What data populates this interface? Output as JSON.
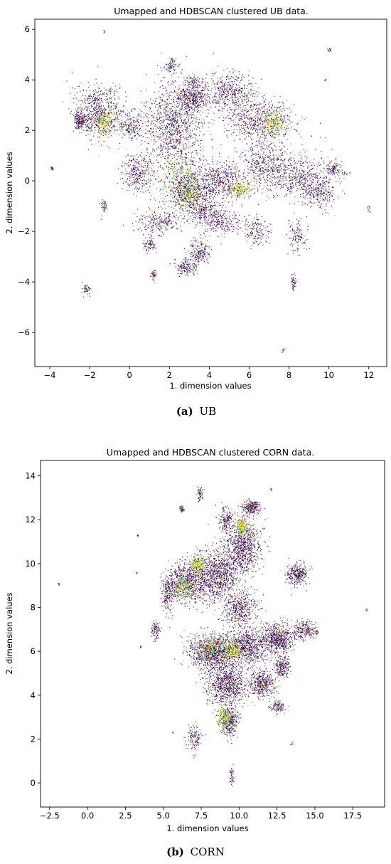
{
  "colors": {
    "noise": "#440154",
    "cluster_palette": [
      "#3b528b",
      "#21918c",
      "#5ec962",
      "#fde725"
    ],
    "frame": "#000000",
    "background": "#ffffff"
  },
  "chart_data": [
    {
      "id": "ub",
      "type": "scatter",
      "title": "Umapped and HDBSCAN clustered UB data.",
      "xlabel": "1. dimension values",
      "ylabel": "2. dimension values",
      "xlim": [
        -4.75,
        12.9
      ],
      "ylim": [
        -7.35,
        6.4
      ],
      "xticks": [
        -4,
        -2,
        0,
        2,
        4,
        6,
        8,
        10,
        12
      ],
      "xtick_labels": [
        "−4",
        "−2",
        "0",
        "2",
        "4",
        "6",
        "8",
        "10",
        "12"
      ],
      "yticks": [
        -6,
        -4,
        -2,
        0,
        2,
        4,
        6
      ],
      "ytick_labels": [
        "−6",
        "−4",
        "−2",
        "0",
        "2",
        "4",
        "6"
      ],
      "grid": false,
      "legend": "none",
      "caption_label": "(a)",
      "caption_text": "UB",
      "blobs": [
        [
          2.2,
          2.2,
          1.5,
          1.8,
          0.7
        ],
        [
          3.2,
          3.3,
          0.7,
          0.5,
          0.25
        ],
        [
          6.5,
          2.4,
          1.6,
          0.8,
          0.4
        ],
        [
          6.8,
          0.7,
          1.2,
          1.0,
          0.3
        ],
        [
          3.0,
          -0.3,
          1.4,
          1.0,
          0.5
        ],
        [
          8.5,
          0.2,
          1.5,
          0.9,
          0.3
        ],
        [
          9.5,
          -0.5,
          0.8,
          0.6,
          0.15
        ],
        [
          -1.5,
          2.8,
          1.2,
          1.0,
          0.45
        ],
        [
          -2.5,
          2.4,
          0.3,
          0.4,
          0.12
        ],
        [
          0.1,
          2.2,
          0.6,
          0.5,
          0.12
        ],
        [
          0.4,
          0.3,
          0.8,
          0.7,
          0.2
        ],
        [
          5.0,
          3.5,
          1.2,
          0.8,
          0.3
        ],
        [
          4.7,
          0.0,
          1.3,
          0.8,
          0.3
        ],
        [
          4.5,
          -1.6,
          1.0,
          0.5,
          0.15
        ],
        [
          1.5,
          -1.6,
          1.0,
          0.5,
          0.15
        ],
        [
          1.0,
          -2.5,
          0.3,
          0.3,
          0.05
        ],
        [
          3.5,
          -2.8,
          0.6,
          0.5,
          0.12
        ],
        [
          2.8,
          -3.4,
          0.6,
          0.3,
          0.1
        ],
        [
          6.3,
          -2.0,
          0.7,
          0.6,
          0.1
        ],
        [
          8.4,
          -2.2,
          0.5,
          0.6,
          0.08
        ],
        [
          2.1,
          4.6,
          0.3,
          0.3,
          0.05
        ],
        [
          10.2,
          0.5,
          0.4,
          0.3,
          0.06
        ],
        [
          8.2,
          -4.0,
          0.15,
          0.35,
          0.03
        ],
        [
          -1.3,
          -1.0,
          0.15,
          0.3,
          0.03
        ],
        [
          -2.2,
          -4.3,
          0.25,
          0.2,
          0.03
        ],
        [
          1.2,
          -3.7,
          0.15,
          0.25,
          0.03
        ],
        [
          10.8,
          0.3,
          0.2,
          0.1,
          0.01
        ],
        [
          12.0,
          -1.1,
          0.1,
          0.1,
          0.008
        ],
        [
          10.0,
          5.2,
          0.1,
          0.1,
          0.008
        ],
        [
          -1.3,
          5.9,
          0.05,
          0.05,
          0.003
        ],
        [
          -3.9,
          0.5,
          0.1,
          0.1,
          0.008
        ],
        [
          7.7,
          -6.7,
          0.08,
          0.08,
          0.005
        ],
        [
          9.8,
          4.0,
          0.05,
          0.05,
          0.003
        ],
        [
          3.2,
          3.9,
          0.5,
          0.3,
          0.05
        ],
        [
          3.7,
          -1.2,
          1.0,
          0.5,
          0.15
        ]
      ],
      "dense_blobs": [
        [
          2.4,
          0.3,
          0.8,
          1.0
        ],
        [
          3.0,
          -0.5,
          0.6,
          0.5
        ],
        [
          -1.3,
          2.3,
          0.5,
          0.5
        ],
        [
          5.5,
          -0.3,
          0.5,
          0.3
        ],
        [
          7.2,
          2.3,
          0.6,
          0.5
        ]
      ]
    },
    {
      "id": "corn",
      "type": "scatter",
      "title": "Umapped and HDBSCAN clustered CORN data.",
      "xlabel": "1. dimension values",
      "ylabel": "2. dimension values",
      "xlim": [
        -3.1,
        19.6
      ],
      "ylim": [
        -1.1,
        14.7
      ],
      "xticks": [
        -2.5,
        0.0,
        2.5,
        5.0,
        7.5,
        10.0,
        12.5,
        15.0,
        17.5
      ],
      "xtick_labels": [
        "−2.5",
        "0.0",
        "2.5",
        "5.0",
        "7.5",
        "10.0",
        "12.5",
        "15.0",
        "17.5"
      ],
      "yticks": [
        0,
        2,
        4,
        6,
        8,
        10,
        12,
        14
      ],
      "ytick_labels": [
        "0",
        "2",
        "4",
        "6",
        "8",
        "10",
        "12",
        "14"
      ],
      "grid": false,
      "legend": "none",
      "caption_label": "(b)",
      "caption_text": "CORN",
      "blobs": [
        [
          6.6,
          9.2,
          1.4,
          0.9,
          0.35
        ],
        [
          8.5,
          9.5,
          1.5,
          1.2,
          0.45
        ],
        [
          10.2,
          10.8,
          1.2,
          1.2,
          0.4
        ],
        [
          10.8,
          12.6,
          0.5,
          0.3,
          0.12
        ],
        [
          8.3,
          6.0,
          1.6,
          0.8,
          0.5
        ],
        [
          10.5,
          6.2,
          1.3,
          0.8,
          0.35
        ],
        [
          12.5,
          6.6,
          1.0,
          0.7,
          0.3
        ],
        [
          13.8,
          9.5,
          0.7,
          0.5,
          0.15
        ],
        [
          14.3,
          7.0,
          0.7,
          0.4,
          0.1
        ],
        [
          9.2,
          4.5,
          1.3,
          1.0,
          0.4
        ],
        [
          9.3,
          2.8,
          0.6,
          0.7,
          0.15
        ],
        [
          11.5,
          4.5,
          0.8,
          0.6,
          0.2
        ],
        [
          12.8,
          5.3,
          0.5,
          0.5,
          0.1
        ],
        [
          5.3,
          8.6,
          0.4,
          0.8,
          0.1
        ],
        [
          4.5,
          7.0,
          0.3,
          0.4,
          0.05
        ],
        [
          7.4,
          13.2,
          0.2,
          0.3,
          0.03
        ],
        [
          6.2,
          12.5,
          0.15,
          0.15,
          0.02
        ],
        [
          9.1,
          12.0,
          0.5,
          0.6,
          0.08
        ],
        [
          7.0,
          2.0,
          0.5,
          0.6,
          0.06
        ],
        [
          12.5,
          3.5,
          0.5,
          0.3,
          0.05
        ],
        [
          9.5,
          0.3,
          0.15,
          0.5,
          0.02
        ],
        [
          10.0,
          8.0,
          1.2,
          0.8,
          0.2
        ],
        [
          15.1,
          6.9,
          0.15,
          0.1,
          0.01
        ],
        [
          3.3,
          11.3,
          0.05,
          0.05,
          0.003
        ],
        [
          -1.9,
          9.1,
          0.05,
          0.05,
          0.003
        ],
        [
          18.4,
          7.9,
          0.05,
          0.05,
          0.003
        ],
        [
          3.5,
          6.2,
          0.05,
          0.05,
          0.003
        ],
        [
          5.6,
          2.3,
          0.05,
          0.05,
          0.003
        ],
        [
          13.5,
          1.8,
          0.1,
          0.05,
          0.004
        ],
        [
          12.1,
          13.4,
          0.05,
          0.05,
          0.003
        ],
        [
          3.2,
          9.6,
          0.05,
          0.05,
          0.003
        ]
      ],
      "dense_blobs": [
        [
          6.4,
          9.0,
          0.6,
          0.5
        ],
        [
          7.2,
          10.0,
          0.5,
          0.4
        ],
        [
          8.2,
          6.2,
          0.9,
          0.5
        ],
        [
          9.5,
          6.1,
          0.6,
          0.4
        ],
        [
          9.0,
          3.0,
          0.5,
          0.5
        ],
        [
          10.2,
          11.7,
          0.4,
          0.4
        ]
      ]
    }
  ]
}
